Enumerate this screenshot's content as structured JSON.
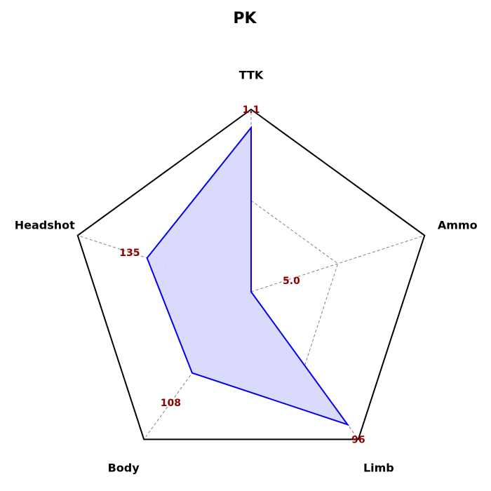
{
  "chart_data": {
    "type": "radar",
    "title": "PK",
    "axes": [
      "TTK",
      "Ammo",
      "Limb",
      "Body",
      "Headshot"
    ],
    "normalized": [
      0.9,
      0.0,
      0.9,
      0.55,
      0.6
    ],
    "value_labels": [
      "1.1",
      "5.0",
      "96",
      "108",
      "135"
    ],
    "grid_levels": [
      0.5
    ],
    "colors": {
      "series_line": "#0000ee",
      "series_fill": "#d8d8fd",
      "outer_frame": "#000000",
      "grid": "#808080",
      "value_label": "#8b0000"
    }
  }
}
